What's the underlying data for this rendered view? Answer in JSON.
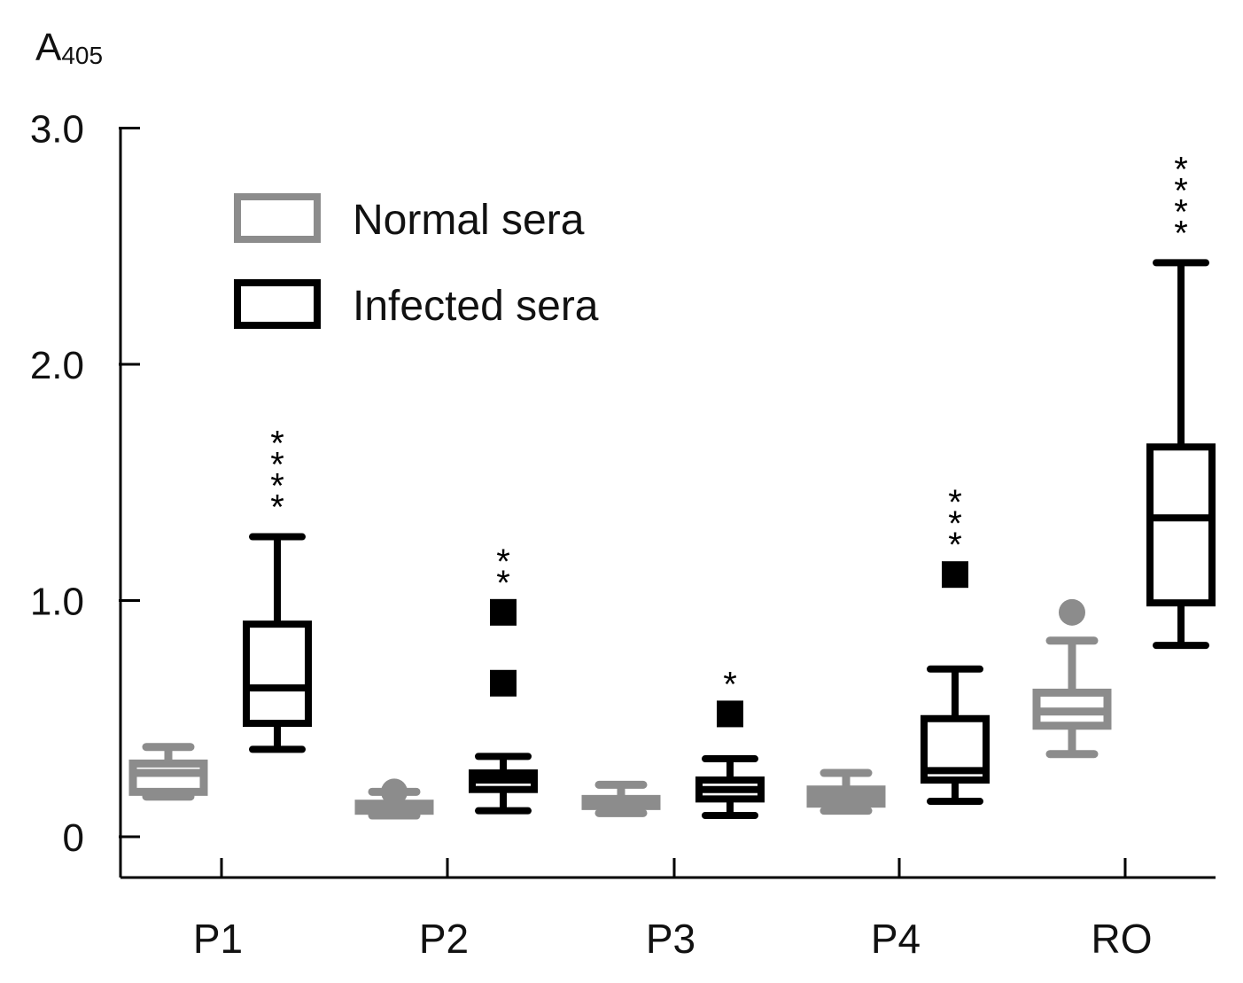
{
  "chart_data": {
    "type": "box",
    "title": "",
    "ylabel": "A",
    "ylabel_sub": "405",
    "xlabel": "",
    "ylim": [
      -0.18,
      3.0
    ],
    "yticks": [
      0,
      1.0,
      2.0,
      3.0
    ],
    "ytick_labels": [
      "0",
      "1.0",
      "2.0",
      "3.0"
    ],
    "categories": [
      "P1",
      "P2",
      "P3",
      "P4",
      "RO"
    ],
    "legend": {
      "placement": "top-left",
      "entries": [
        {
          "label": "Normal sera",
          "color": "#8c8c8c"
        },
        {
          "label": "Infected sera",
          "color": "#000000"
        }
      ]
    },
    "series": [
      {
        "name": "Normal sera",
        "color": "#8c8c8c",
        "boxes": [
          {
            "category": "P1",
            "whisker_low": 0.17,
            "q1": 0.19,
            "median": 0.27,
            "q3": 0.31,
            "whisker_high": 0.38,
            "outliers": []
          },
          {
            "category": "P2",
            "whisker_low": 0.09,
            "q1": 0.11,
            "median": 0.13,
            "q3": 0.14,
            "whisker_high": 0.19,
            "outliers": [
              0.19
            ]
          },
          {
            "category": "P3",
            "whisker_low": 0.1,
            "q1": 0.13,
            "median": 0.15,
            "q3": 0.16,
            "whisker_high": 0.22,
            "outliers": []
          },
          {
            "category": "P4",
            "whisker_low": 0.11,
            "q1": 0.14,
            "median": 0.17,
            "q3": 0.2,
            "whisker_high": 0.27,
            "outliers": []
          },
          {
            "category": "RO",
            "whisker_low": 0.35,
            "q1": 0.47,
            "median": 0.53,
            "q3": 0.61,
            "whisker_high": 0.83,
            "outliers": [
              0.95
            ]
          }
        ]
      },
      {
        "name": "Infected sera",
        "color": "#000000",
        "boxes": [
          {
            "category": "P1",
            "whisker_low": 0.37,
            "q1": 0.48,
            "median": 0.63,
            "q3": 0.9,
            "whisker_high": 1.27,
            "outliers": [],
            "significance": "****"
          },
          {
            "category": "P2",
            "whisker_low": 0.11,
            "q1": 0.2,
            "median": 0.24,
            "q3": 0.27,
            "whisker_high": 0.34,
            "outliers": [
              0.65,
              0.95
            ],
            "significance": "**"
          },
          {
            "category": "P3",
            "whisker_low": 0.09,
            "q1": 0.16,
            "median": 0.2,
            "q3": 0.24,
            "whisker_high": 0.33,
            "outliers": [
              0.52
            ],
            "significance": "*"
          },
          {
            "category": "P4",
            "whisker_low": 0.15,
            "q1": 0.24,
            "median": 0.28,
            "q3": 0.5,
            "whisker_high": 0.71,
            "outliers": [
              1.11
            ],
            "significance": "***"
          },
          {
            "category": "RO",
            "whisker_low": 0.81,
            "q1": 0.99,
            "median": 1.35,
            "q3": 1.65,
            "whisker_high": 2.43,
            "outliers": [],
            "significance": "****"
          }
        ]
      }
    ]
  }
}
